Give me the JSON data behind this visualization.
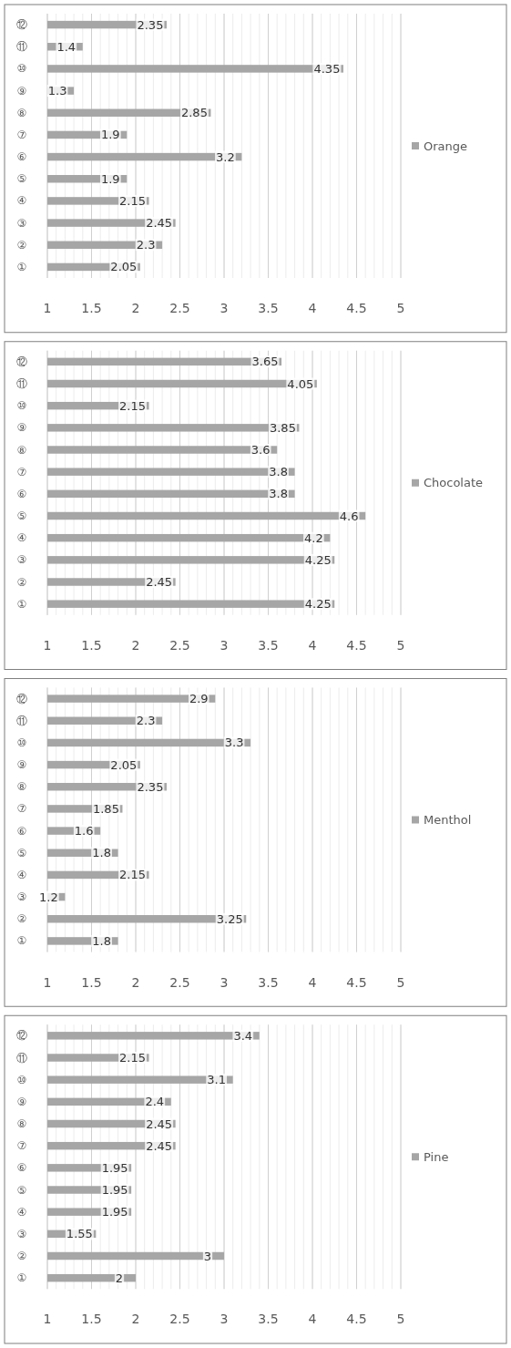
{
  "chart_data": [
    {
      "type": "bar",
      "orientation": "horizontal",
      "categories": [
        "⑫",
        "⑪",
        "⑩",
        "⑨",
        "⑧",
        "⑦",
        "⑥",
        "⑤",
        "④",
        "③",
        "②",
        "①"
      ],
      "series": [
        {
          "name": "Orange",
          "color": "#a6a6a6",
          "values": [
            2.35,
            1.4,
            4.35,
            1.3,
            2.85,
            1.9,
            3.2,
            1.9,
            2.15,
            2.45,
            2.3,
            2.05
          ]
        }
      ],
      "xlim": [
        1,
        5
      ],
      "xticks": [
        1,
        1.5,
        2,
        2.5,
        3,
        3.5,
        4,
        4.5,
        5
      ],
      "grid": "x",
      "legend": "right",
      "data_labels": true
    },
    {
      "type": "bar",
      "orientation": "horizontal",
      "categories": [
        "⑫",
        "⑪",
        "⑩",
        "⑨",
        "⑧",
        "⑦",
        "⑥",
        "⑤",
        "④",
        "③",
        "②",
        "①"
      ],
      "series": [
        {
          "name": "Chocolate",
          "color": "#a6a6a6",
          "values": [
            3.65,
            4.05,
            2.15,
            3.85,
            3.6,
            3.8,
            3.8,
            4.6,
            4.2,
            4.25,
            2.45,
            4.25
          ]
        }
      ],
      "xlim": [
        1,
        5
      ],
      "xticks": [
        1,
        1.5,
        2,
        2.5,
        3,
        3.5,
        4,
        4.5,
        5
      ],
      "grid": "x",
      "legend": "right",
      "data_labels": true
    },
    {
      "type": "bar",
      "orientation": "horizontal",
      "categories": [
        "⑫",
        "⑪",
        "⑩",
        "⑨",
        "⑧",
        "⑦",
        "⑥",
        "⑤",
        "④",
        "③",
        "②",
        "①"
      ],
      "series": [
        {
          "name": "Menthol",
          "color": "#a6a6a6",
          "values": [
            2.9,
            2.3,
            3.3,
            2.05,
            2.35,
            1.85,
            1.6,
            1.8,
            2.15,
            1.2,
            3.25,
            1.8
          ]
        }
      ],
      "xlim": [
        1,
        5
      ],
      "xticks": [
        1,
        1.5,
        2,
        2.5,
        3,
        3.5,
        4,
        4.5,
        5
      ],
      "grid": "x",
      "legend": "right",
      "data_labels": true
    },
    {
      "type": "bar",
      "orientation": "horizontal",
      "categories": [
        "⑫",
        "⑪",
        "⑩",
        "⑨",
        "⑧",
        "⑦",
        "⑥",
        "⑤",
        "④",
        "③",
        "②",
        "①"
      ],
      "series": [
        {
          "name": "Pine",
          "color": "#a6a6a6",
          "values": [
            3.4,
            2.15,
            3.1,
            2.4,
            2.45,
            2.45,
            1.95,
            1.95,
            1.95,
            1.55,
            3,
            2
          ]
        }
      ],
      "xlim": [
        1,
        5
      ],
      "xticks": [
        1,
        1.5,
        2,
        2.5,
        3,
        3.5,
        4,
        4.5,
        5
      ],
      "grid": "x",
      "legend": "right",
      "data_labels": true
    }
  ]
}
